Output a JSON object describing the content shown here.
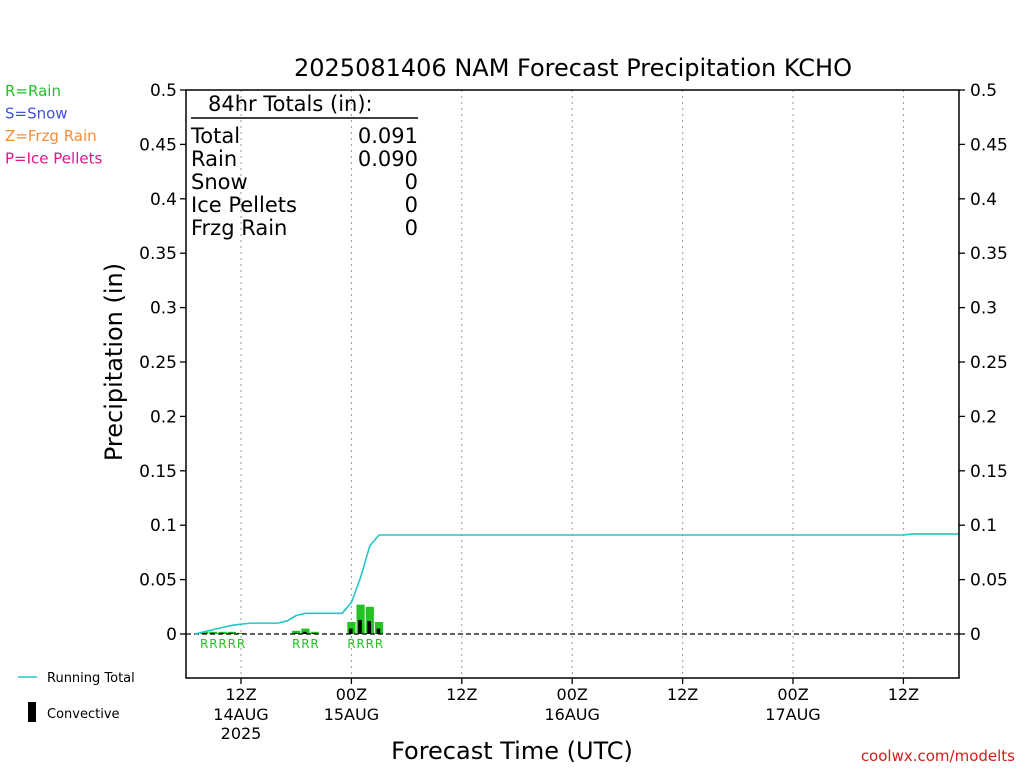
{
  "chart_data": {
    "type": "bar",
    "title": "2025081406 NAM Forecast Precipitation KCHO",
    "xlabel": "Forecast Time (UTC)",
    "ylabel": "Precipitation (in)",
    "ylim": [
      0,
      0.5
    ],
    "yticks": [
      "0",
      "0.05",
      "0.1",
      "0.15",
      "0.2",
      "0.25",
      "0.3",
      "0.35",
      "0.4",
      "0.45",
      "0.5"
    ],
    "xlim": [
      6,
      90
    ],
    "xticks": [
      {
        "hour": 12,
        "label": "12Z",
        "date": "14AUG",
        "year": "2025"
      },
      {
        "hour": 24,
        "label": "00Z",
        "date": "15AUG",
        "year": ""
      },
      {
        "hour": 36,
        "label": "12Z",
        "date": "",
        "year": ""
      },
      {
        "hour": 48,
        "label": "00Z",
        "date": "16AUG",
        "year": ""
      },
      {
        "hour": 60,
        "label": "12Z",
        "date": "",
        "year": ""
      },
      {
        "hour": 72,
        "label": "00Z",
        "date": "17AUG",
        "year": ""
      },
      {
        "hour": 84,
        "label": "12Z",
        "date": "",
        "year": ""
      }
    ],
    "grid": true,
    "running_total": {
      "name": "Running Total",
      "color": "#26c6c6",
      "hours": [
        7,
        8,
        9,
        10,
        11,
        12,
        13,
        14,
        15,
        16,
        17,
        18,
        19,
        20,
        21,
        22,
        23,
        24,
        25,
        26,
        27,
        28,
        29,
        30,
        84,
        85,
        90
      ],
      "values": [
        0.0,
        0.002,
        0.004,
        0.006,
        0.008,
        0.009,
        0.01,
        0.01,
        0.01,
        0.01,
        0.012,
        0.017,
        0.019,
        0.019,
        0.019,
        0.019,
        0.019,
        0.029,
        0.052,
        0.081,
        0.091,
        0.091,
        0.091,
        0.091,
        0.091,
        0.092,
        0.092
      ]
    },
    "bars": {
      "hours": [
        8,
        9,
        10,
        11,
        12,
        18,
        19,
        20,
        24,
        25,
        26,
        27
      ],
      "total": [
        0.002,
        0.002,
        0.002,
        0.002,
        0.001,
        0.003,
        0.005,
        0.002,
        0.011,
        0.027,
        0.025,
        0.011
      ],
      "convective": [
        0.001,
        0.001,
        0.001,
        0.001,
        0.0,
        0.001,
        0.002,
        0.001,
        0.005,
        0.013,
        0.012,
        0.005
      ],
      "precip_color": "#22c322",
      "convective_color": "#000000"
    },
    "ptype_markers": [
      {
        "hours": [
          8,
          9,
          10,
          11,
          12
        ],
        "letter": "R"
      },
      {
        "hours": [
          18,
          19,
          20
        ],
        "letter": "R"
      },
      {
        "hours": [
          24,
          25,
          26,
          27
        ],
        "letter": "R"
      }
    ],
    "ptype_legend": [
      {
        "text": "R=Rain",
        "color": "#22c322"
      },
      {
        "text": "S=Snow",
        "color": "#3f51d6"
      },
      {
        "text": "Z=Frzg Rain",
        "color": "#f28c38"
      },
      {
        "text": "P=Ice Pellets",
        "color": "#e0158c"
      }
    ],
    "totals_box": {
      "heading": "84hr Totals (in):",
      "rows": [
        {
          "label": "Total",
          "value": "0.091"
        },
        {
          "label": "Rain",
          "value": "0.090"
        },
        {
          "label": "Snow",
          "value": "0"
        },
        {
          "label": "Ice Pellets",
          "value": "0"
        },
        {
          "label": "Frzg Rain",
          "value": "0"
        }
      ]
    },
    "legend": {
      "placement": "bottom-left",
      "items": [
        {
          "text": "Running Total",
          "kind": "line",
          "color": "#26c6c6"
        },
        {
          "text": "Convective",
          "kind": "bar",
          "color": "#000000"
        }
      ]
    },
    "credit": "coolwx.com/modelts",
    "credit_color": "#d81b1b"
  }
}
